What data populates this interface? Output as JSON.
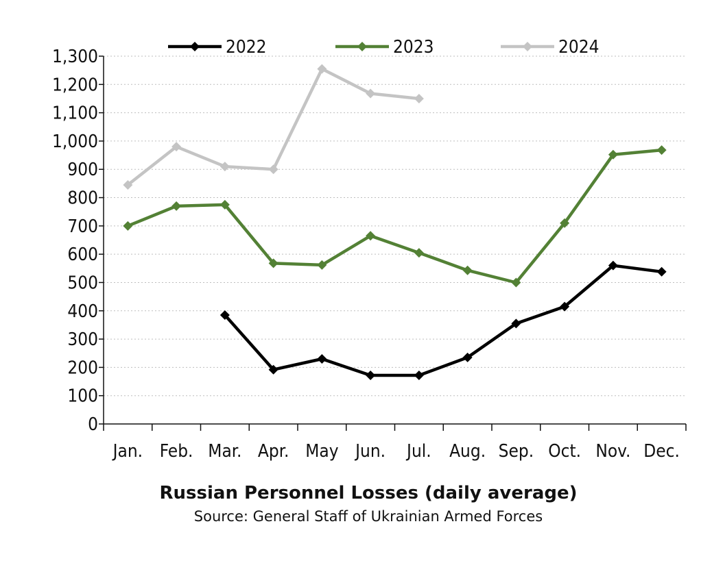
{
  "chart_data": {
    "type": "line",
    "title": "Russian Personnel Losses (daily average)",
    "subtitle": "Source: General Staff of Ukrainian Armed Forces",
    "categories": [
      "Jan.",
      "Feb.",
      "Mar.",
      "Apr.",
      "May",
      "Jun.",
      "Jul.",
      "Aug.",
      "Sep.",
      "Oct.",
      "Nov.",
      "Dec."
    ],
    "ylim": [
      0,
      1300
    ],
    "yticks": [
      0,
      100,
      200,
      300,
      400,
      500,
      600,
      700,
      800,
      900,
      1000,
      1100,
      1200,
      1300
    ],
    "ytick_labels": [
      "0",
      "100",
      "200",
      "300",
      "400",
      "500",
      "600",
      "700",
      "800",
      "900",
      "1,000",
      "1,100",
      "1,200",
      "1,300"
    ],
    "grid": true,
    "legend_position": "top",
    "series": [
      {
        "name": "2022",
        "color": "#000000",
        "values": [
          null,
          null,
          385,
          192,
          230,
          172,
          172,
          235,
          355,
          415,
          560,
          538
        ]
      },
      {
        "name": "2023",
        "color": "#538135",
        "values": [
          700,
          770,
          775,
          568,
          562,
          665,
          605,
          543,
          500,
          710,
          952,
          968
        ]
      },
      {
        "name": "2024",
        "color": "#c4c4c4",
        "values": [
          845,
          980,
          910,
          900,
          1255,
          1168,
          1150,
          null,
          null,
          null,
          null,
          null
        ]
      }
    ]
  }
}
